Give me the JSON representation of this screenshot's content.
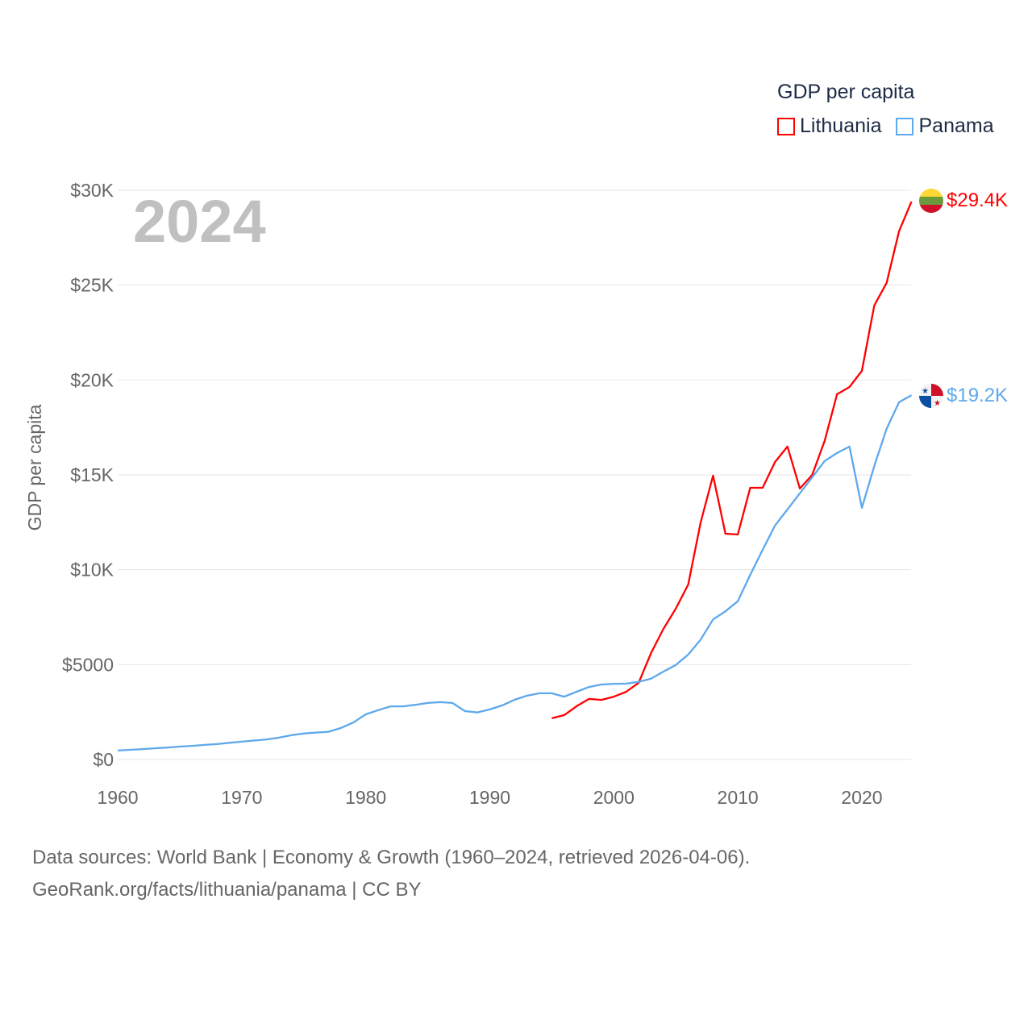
{
  "chart_data": {
    "type": "line",
    "title": "GDP per capita",
    "ylabel": "GDP per capita",
    "xlabel": "",
    "year_label": "2024",
    "xlim": [
      1960,
      2024
    ],
    "ylim": [
      0,
      30000
    ],
    "x_ticks": [
      1960,
      1970,
      1980,
      1990,
      2000,
      2010,
      2020
    ],
    "x_tick_labels": [
      "1960",
      "1970",
      "1980",
      "1990",
      "2000",
      "2010",
      "2020"
    ],
    "y_ticks": [
      0,
      5000,
      10000,
      15000,
      20000,
      25000,
      30000
    ],
    "y_tick_labels": [
      "$0",
      "$5000",
      "$10K",
      "$15K",
      "$20K",
      "$25K",
      "$30K"
    ],
    "grid": true,
    "legend_placement": "top-right",
    "series": [
      {
        "name": "Lithuania",
        "color": "#ff0000",
        "end_label": "$29.4K",
        "start_year": 1995,
        "values": [
          2170,
          2340,
          2810,
          3190,
          3140,
          3310,
          3570,
          4040,
          5610,
          6880,
          7950,
          9220,
          12490,
          14960,
          11900,
          11860,
          14320,
          14320,
          15680,
          16490,
          14280,
          15000,
          16790,
          19250,
          19630,
          20480,
          23930,
          25120,
          27840,
          29400
        ]
      },
      {
        "name": "Panama",
        "color": "#5ea8ec",
        "end_label": "$19.2K",
        "start_year": 1960,
        "values": [
          470,
          510,
          550,
          590,
          630,
          680,
          720,
          770,
          810,
          880,
          940,
          1000,
          1060,
          1150,
          1280,
          1370,
          1420,
          1460,
          1660,
          1950,
          2380,
          2600,
          2800,
          2800,
          2880,
          2980,
          3020,
          2980,
          2550,
          2480,
          2640,
          2850,
          3150,
          3360,
          3490,
          3490,
          3310,
          3570,
          3820,
          3950,
          3990,
          4000,
          4090,
          4260,
          4630,
          4980,
          5530,
          6320,
          7380,
          7810,
          8340,
          9730,
          11050,
          12330,
          13180,
          14030,
          14870,
          15730,
          16150,
          16490,
          13260,
          15470,
          17430,
          18830,
          19200
        ]
      }
    ]
  },
  "footer": {
    "line1": "Data sources: World Bank | Economy & Growth (1960–2024, retrieved 2026-04-06).",
    "line2": "GeoRank.org/facts/lithuania/panama | CC BY"
  }
}
